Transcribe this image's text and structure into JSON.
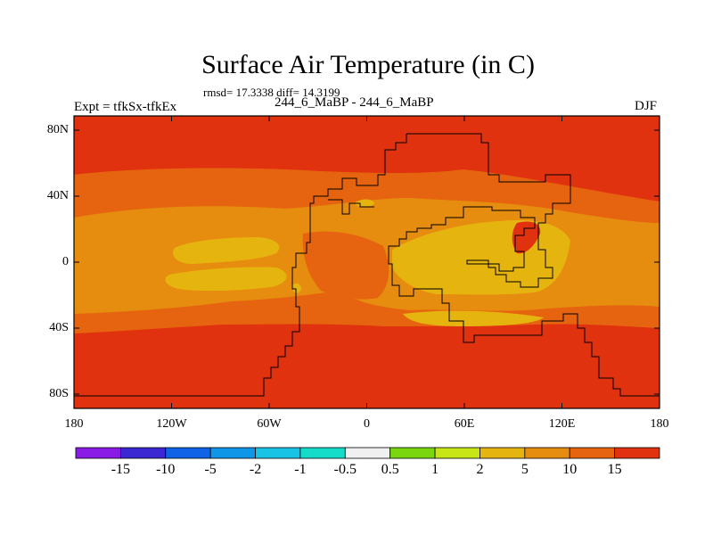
{
  "title": "Surface Air Temperature (in C)",
  "stats_text": "rmsd= 17.3338 diff= 14.3199",
  "left_label": "Expt = tfkSx-tfkEx",
  "center_label": "244_6_MaBP - 244_6_MaBP",
  "right_label": "DJF",
  "lat_ticks": [
    "80N",
    "40N",
    "0",
    "40S",
    "80S"
  ],
  "lon_ticks": [
    "180",
    "120W",
    "60W",
    "0",
    "60E",
    "120E",
    "180"
  ],
  "colorbar": {
    "labels": [
      "-15",
      "-10",
      "-5",
      "-2",
      "-1",
      "-0.5",
      "0.5",
      "1",
      "2",
      "5",
      "10",
      "15"
    ],
    "colors": [
      "#8a1be6",
      "#3c28d2",
      "#0f63e6",
      "#0f96e6",
      "#19c3e6",
      "#14dcc8",
      "#f0f0f0",
      "#7ad70f",
      "#c8e615",
      "#e6b40f",
      "#e68c0f",
      "#e6640f",
      "#e1320f"
    ]
  },
  "map_colors": {
    "above_15": "#e1320f",
    "10_to_15": "#e6640f",
    "5_to_10": "#e68c0f",
    "2_to_5": "#e6b40f"
  }
}
